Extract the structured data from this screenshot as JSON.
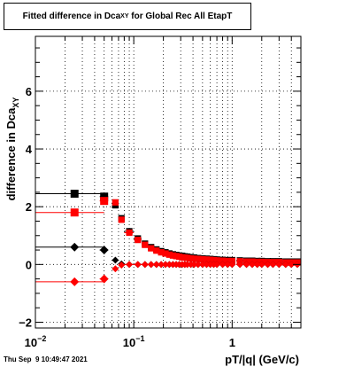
{
  "chart_data": {
    "type": "scatter",
    "title": {
      "pre": "Fitted difference in Dca",
      "sub": "XY",
      "post": " for Global Rec All EtapT"
    },
    "xlabel": "pT/|q| (GeV/c)",
    "ylabel": {
      "pre": "difference in Dca",
      "sub": "XY"
    },
    "xscale": "log",
    "xlim": [
      0.01,
      5
    ],
    "ylim": [
      -2.2,
      7.9
    ],
    "x_major_ticks": [
      0.01,
      0.1,
      1
    ],
    "x_tick_labels": [
      {
        "base": "10",
        "exp": "−2"
      },
      {
        "base": "10",
        "exp": "−1"
      },
      {
        "base": "1",
        "exp": ""
      }
    ],
    "y_major_ticks": [
      -2,
      0,
      2,
      4,
      6
    ],
    "y_tick_labels": [
      "−2",
      "0",
      "2",
      "4",
      "6"
    ],
    "grid": true,
    "series": [
      {
        "color": "#000000",
        "marker": "square",
        "x": [
          0.025,
          0.05,
          0.065,
          0.075,
          0.09,
          0.11,
          0.13,
          0.15,
          0.17,
          0.19,
          0.21,
          0.23,
          0.25,
          0.27,
          0.29,
          0.31,
          0.33,
          0.35,
          0.38,
          0.41,
          0.45,
          0.5,
          0.55,
          0.6,
          0.65,
          0.7,
          0.8,
          0.9,
          1.0,
          1.2,
          1.4,
          1.6,
          1.8,
          2.0,
          2.3,
          2.6,
          3.0,
          3.5,
          4.0,
          4.6
        ],
        "y": [
          2.45,
          2.35,
          2.05,
          1.6,
          1.15,
          0.9,
          0.72,
          0.6,
          0.52,
          0.46,
          0.42,
          0.38,
          0.35,
          0.33,
          0.31,
          0.3,
          0.28,
          0.27,
          0.25,
          0.24,
          0.22,
          0.21,
          0.2,
          0.19,
          0.18,
          0.17,
          0.16,
          0.15,
          0.15,
          0.14,
          0.13,
          0.13,
          0.12,
          0.12,
          0.11,
          0.11,
          0.11,
          0.1,
          0.1,
          0.1
        ],
        "xerr": [
          0.025,
          0.005,
          0.005,
          0.005,
          0.01,
          0.01,
          0.01,
          0.01,
          0.01,
          0.01,
          0.01,
          0.01,
          0.01,
          0.01,
          0.01,
          0.01,
          0.01,
          0.01,
          0.015,
          0.015,
          0.02,
          0.025,
          0.025,
          0.025,
          0.025,
          0.025,
          0.05,
          0.05,
          0.05,
          0.1,
          0.1,
          0.1,
          0.1,
          0.1,
          0.15,
          0.15,
          0.2,
          0.25,
          0.25,
          0.3
        ]
      },
      {
        "color": "#ff0000",
        "marker": "square",
        "x": [
          0.025,
          0.05,
          0.065,
          0.075,
          0.09,
          0.11,
          0.13,
          0.15,
          0.17,
          0.19,
          0.21,
          0.23,
          0.25,
          0.27,
          0.29,
          0.31,
          0.33,
          0.35,
          0.38,
          0.41,
          0.45,
          0.5,
          0.55,
          0.6,
          0.65,
          0.7,
          0.8,
          0.9,
          1.0,
          1.2,
          1.4,
          1.6,
          1.8,
          2.0,
          2.3,
          2.6,
          3.0,
          3.5,
          4.0,
          4.6
        ],
        "y": [
          1.8,
          2.2,
          2.15,
          1.55,
          1.1,
          0.85,
          0.68,
          0.56,
          0.48,
          0.42,
          0.38,
          0.34,
          0.31,
          0.29,
          0.27,
          0.25,
          0.24,
          0.23,
          0.21,
          0.2,
          0.19,
          0.18,
          0.17,
          0.16,
          0.15,
          0.14,
          0.13,
          0.12,
          0.12,
          0.11,
          0.1,
          0.1,
          0.09,
          0.09,
          0.08,
          0.08,
          0.08,
          0.07,
          0.07,
          0.07
        ],
        "xerr": [
          0.025,
          0.005,
          0.005,
          0.005,
          0.01,
          0.01,
          0.01,
          0.01,
          0.01,
          0.01,
          0.01,
          0.01,
          0.01,
          0.01,
          0.01,
          0.01,
          0.01,
          0.01,
          0.015,
          0.015,
          0.02,
          0.025,
          0.025,
          0.025,
          0.025,
          0.025,
          0.05,
          0.05,
          0.05,
          0.1,
          0.1,
          0.1,
          0.1,
          0.1,
          0.15,
          0.15,
          0.2,
          0.25,
          0.25,
          0.3
        ]
      },
      {
        "color": "#000000",
        "marker": "diamond",
        "x": [
          0.025,
          0.05,
          0.065,
          0.075,
          0.09,
          0.11,
          0.13,
          0.15,
          0.17,
          0.19,
          0.21,
          0.23,
          0.25,
          0.27,
          0.29,
          0.31,
          0.33,
          0.35,
          0.38,
          0.41,
          0.45,
          0.5,
          0.55,
          0.6,
          0.65,
          0.7,
          0.8,
          0.9,
          1.0,
          1.2,
          1.4,
          1.6,
          1.8,
          2.0,
          2.3,
          2.6,
          3.0,
          3.5,
          4.0,
          4.6
        ],
        "y": [
          0.6,
          0.5,
          0.15,
          0.02,
          0.0,
          0.0,
          0.0,
          0.0,
          0.0,
          0.0,
          0.0,
          0.0,
          0.0,
          0.0,
          0.0,
          0.0,
          0.0,
          0.0,
          0.0,
          0.0,
          0.0,
          0.0,
          0.0,
          0.0,
          0.0,
          0.0,
          0.0,
          0.0,
          0.0,
          0.0,
          0.0,
          0.0,
          0.0,
          0.0,
          0.0,
          0.0,
          0.0,
          0.0,
          0.0,
          0.0
        ],
        "xerr": [
          0.025,
          0.005,
          0.005,
          0.005,
          0.01,
          0.01,
          0.01,
          0.01,
          0.01,
          0.01,
          0.01,
          0.01,
          0.01,
          0.01,
          0.01,
          0.01,
          0.01,
          0.01,
          0.015,
          0.015,
          0.02,
          0.025,
          0.025,
          0.025,
          0.025,
          0.025,
          0.05,
          0.05,
          0.05,
          0.1,
          0.1,
          0.1,
          0.1,
          0.1,
          0.15,
          0.15,
          0.2,
          0.25,
          0.25,
          0.3
        ]
      },
      {
        "color": "#ff0000",
        "marker": "diamond",
        "x": [
          0.025,
          0.05,
          0.065,
          0.075,
          0.09,
          0.11,
          0.13,
          0.15,
          0.17,
          0.19,
          0.21,
          0.23,
          0.25,
          0.27,
          0.29,
          0.31,
          0.33,
          0.35,
          0.38,
          0.41,
          0.45,
          0.5,
          0.55,
          0.6,
          0.65,
          0.7,
          0.8,
          0.9,
          1.0,
          1.2,
          1.4,
          1.6,
          1.8,
          2.0,
          2.3,
          2.6,
          3.0,
          3.5,
          4.0,
          4.6
        ],
        "y": [
          -0.6,
          -0.5,
          -0.15,
          -0.02,
          0.0,
          0.0,
          0.0,
          0.0,
          0.0,
          0.0,
          0.0,
          0.0,
          0.0,
          0.0,
          0.0,
          0.0,
          0.0,
          0.0,
          0.0,
          0.0,
          0.0,
          0.0,
          0.0,
          0.0,
          0.0,
          0.0,
          0.0,
          0.0,
          0.0,
          0.0,
          0.0,
          0.0,
          0.0,
          0.0,
          0.0,
          0.0,
          0.0,
          0.0,
          0.0,
          0.0
        ],
        "xerr": [
          0.025,
          0.005,
          0.005,
          0.005,
          0.01,
          0.01,
          0.01,
          0.01,
          0.01,
          0.01,
          0.01,
          0.01,
          0.01,
          0.01,
          0.01,
          0.01,
          0.01,
          0.01,
          0.015,
          0.015,
          0.02,
          0.025,
          0.025,
          0.025,
          0.025,
          0.025,
          0.05,
          0.05,
          0.05,
          0.1,
          0.1,
          0.1,
          0.1,
          0.1,
          0.15,
          0.15,
          0.2,
          0.25,
          0.25,
          0.3
        ]
      }
    ]
  },
  "timestamp": "Thu Sep  9 10:49:47 2021"
}
